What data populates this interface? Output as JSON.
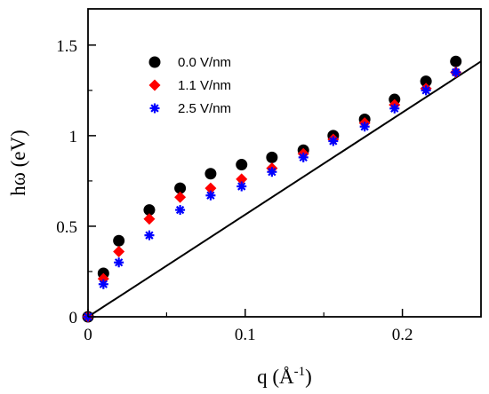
{
  "chart_data": {
    "type": "scatter",
    "xlabel": "q (Å⁻¹)",
    "xlabel_parts": {
      "main": "q (Å",
      "sup": "-1",
      "close": ")"
    },
    "ylabel": "hω (eV)",
    "xlim": [
      0,
      0.25
    ],
    "ylim": [
      0,
      1.7
    ],
    "xticks": [
      0,
      0.1,
      0.2
    ],
    "xtick_labels": [
      "0",
      "0.1",
      "0.2"
    ],
    "yticks": [
      0,
      0.5,
      1,
      1.5
    ],
    "ytick_labels": [
      "0",
      "0.5",
      "1",
      "1.5"
    ],
    "grid": false,
    "legend_position": "top-left",
    "series": [
      {
        "name": "0.0 V/nm",
        "marker": "circle",
        "color": "#000000",
        "x": [
          0,
          0.0098,
          0.0196,
          0.039,
          0.0586,
          0.078,
          0.0977,
          0.117,
          0.137,
          0.156,
          0.176,
          0.195,
          0.215,
          0.234
        ],
        "y": [
          0,
          0.24,
          0.42,
          0.59,
          0.71,
          0.79,
          0.84,
          0.88,
          0.92,
          1.0,
          1.09,
          1.2,
          1.3,
          1.41
        ]
      },
      {
        "name": "1.1 V/nm",
        "marker": "diamond",
        "color": "#ff0000",
        "x": [
          0,
          0.0098,
          0.0196,
          0.039,
          0.0586,
          0.078,
          0.0977,
          0.117,
          0.137,
          0.156,
          0.176,
          0.195,
          0.215,
          0.234
        ],
        "y": [
          0,
          0.21,
          0.36,
          0.54,
          0.66,
          0.71,
          0.76,
          0.82,
          0.9,
          0.98,
          1.07,
          1.17,
          1.26,
          1.35
        ]
      },
      {
        "name": "2.5 V/nm",
        "marker": "asterisk",
        "color": "#0000ff",
        "x": [
          0,
          0.0098,
          0.0196,
          0.039,
          0.0586,
          0.078,
          0.0977,
          0.117,
          0.137,
          0.156,
          0.176,
          0.195,
          0.215,
          0.234
        ],
        "y": [
          0,
          0.18,
          0.3,
          0.45,
          0.59,
          0.67,
          0.72,
          0.8,
          0.88,
          0.97,
          1.05,
          1.15,
          1.25,
          1.35
        ]
      }
    ],
    "lines": [
      {
        "style": "solid",
        "color": "#000000",
        "x": [
          0,
          0.25
        ],
        "y": [
          0,
          1.41
        ]
      }
    ]
  }
}
